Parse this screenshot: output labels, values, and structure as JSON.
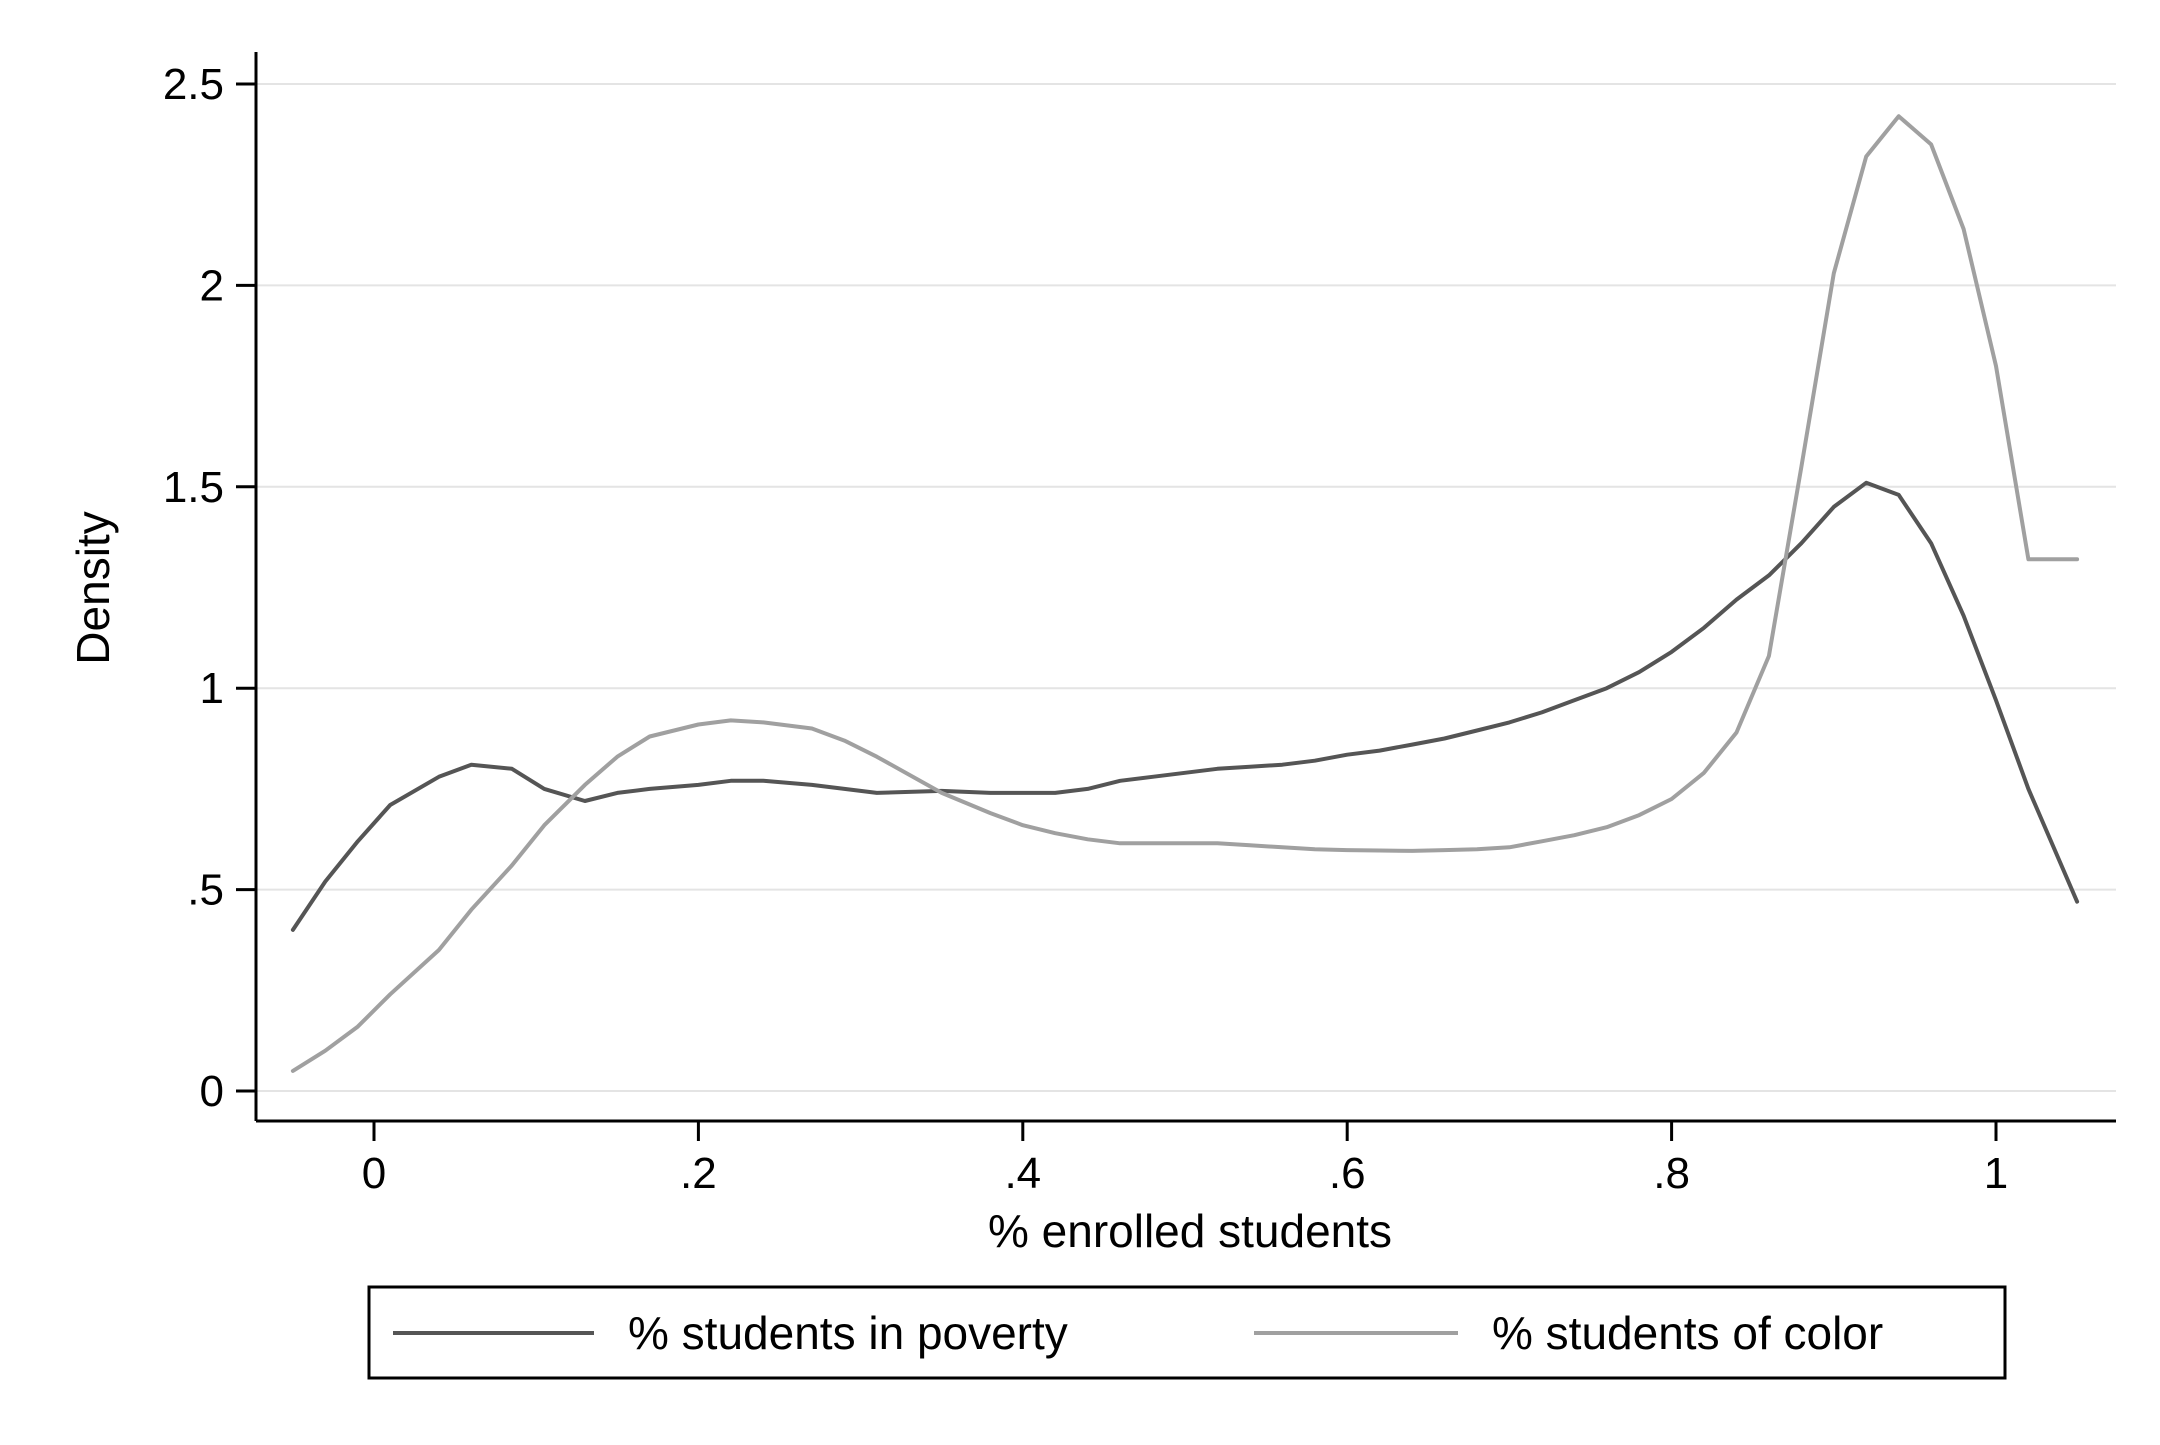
{
  "chart_data": {
    "type": "line",
    "title": "",
    "xlabel": "% enrolled students",
    "ylabel": "Density",
    "xlim": [
      -0.055,
      1.055
    ],
    "ylim": [
      0,
      2.5
    ],
    "x_ticks": [
      {
        "value": 0,
        "label": "0"
      },
      {
        "value": 0.2,
        "label": ".2"
      },
      {
        "value": 0.4,
        "label": ".4"
      },
      {
        "value": 0.6,
        "label": ".6"
      },
      {
        "value": 0.8,
        "label": ".8"
      },
      {
        "value": 1,
        "label": "1"
      }
    ],
    "y_ticks": [
      {
        "value": 0,
        "label": "0"
      },
      {
        "value": 0.5,
        "label": ".5"
      },
      {
        "value": 1,
        "label": "1"
      },
      {
        "value": 1.5,
        "label": "1.5"
      },
      {
        "value": 2,
        "label": "2"
      },
      {
        "value": 2.5,
        "label": "2.5"
      }
    ],
    "grid": true,
    "legend_position": "bottom",
    "series": [
      {
        "name": "% students in poverty",
        "color": "#555555",
        "x": [
          -0.05,
          -0.03,
          -0.01,
          0.01,
          0.04,
          0.06,
          0.085,
          0.105,
          0.13,
          0.15,
          0.17,
          0.2,
          0.22,
          0.24,
          0.27,
          0.29,
          0.31,
          0.35,
          0.38,
          0.4,
          0.42,
          0.44,
          0.46,
          0.48,
          0.5,
          0.52,
          0.54,
          0.56,
          0.58,
          0.6,
          0.62,
          0.64,
          0.66,
          0.68,
          0.7,
          0.72,
          0.74,
          0.76,
          0.78,
          0.8,
          0.82,
          0.84,
          0.86,
          0.88,
          0.9,
          0.92,
          0.94,
          0.96,
          0.98,
          1.0,
          1.02,
          1.05
        ],
        "y": [
          0.4,
          0.52,
          0.62,
          0.71,
          0.78,
          0.81,
          0.8,
          0.75,
          0.72,
          0.74,
          0.75,
          0.76,
          0.77,
          0.77,
          0.76,
          0.75,
          0.74,
          0.745,
          0.74,
          0.74,
          0.74,
          0.75,
          0.77,
          0.78,
          0.79,
          0.8,
          0.805,
          0.81,
          0.82,
          0.835,
          0.845,
          0.86,
          0.875,
          0.895,
          0.915,
          0.94,
          0.97,
          1.0,
          1.04,
          1.09,
          1.15,
          1.22,
          1.28,
          1.36,
          1.45,
          1.51,
          1.48,
          1.36,
          1.18,
          0.97,
          0.75,
          0.47
        ]
      },
      {
        "name": "% students of color",
        "color": "#a0a0a0",
        "x": [
          -0.05,
          -0.03,
          -0.01,
          0.01,
          0.04,
          0.06,
          0.085,
          0.105,
          0.13,
          0.15,
          0.17,
          0.2,
          0.22,
          0.24,
          0.27,
          0.29,
          0.31,
          0.35,
          0.38,
          0.4,
          0.42,
          0.44,
          0.46,
          0.48,
          0.5,
          0.52,
          0.54,
          0.56,
          0.58,
          0.6,
          0.62,
          0.64,
          0.66,
          0.68,
          0.7,
          0.72,
          0.74,
          0.76,
          0.78,
          0.8,
          0.82,
          0.84,
          0.86,
          0.88,
          0.9,
          0.92,
          0.94,
          0.96,
          0.98,
          1.0,
          1.02,
          1.05
        ],
        "y": [
          0.05,
          0.1,
          0.16,
          0.24,
          0.35,
          0.45,
          0.56,
          0.66,
          0.76,
          0.83,
          0.88,
          0.91,
          0.92,
          0.915,
          0.9,
          0.87,
          0.83,
          0.74,
          0.69,
          0.66,
          0.64,
          0.625,
          0.615,
          0.615,
          0.615,
          0.615,
          0.61,
          0.605,
          0.6,
          0.598,
          0.597,
          0.596,
          0.598,
          0.6,
          0.605,
          0.62,
          0.635,
          0.655,
          0.685,
          0.725,
          0.79,
          0.89,
          1.08,
          1.55,
          2.03,
          2.32,
          2.42,
          2.35,
          2.14,
          1.8,
          1.32,
          1.32
        ]
      }
    ]
  }
}
